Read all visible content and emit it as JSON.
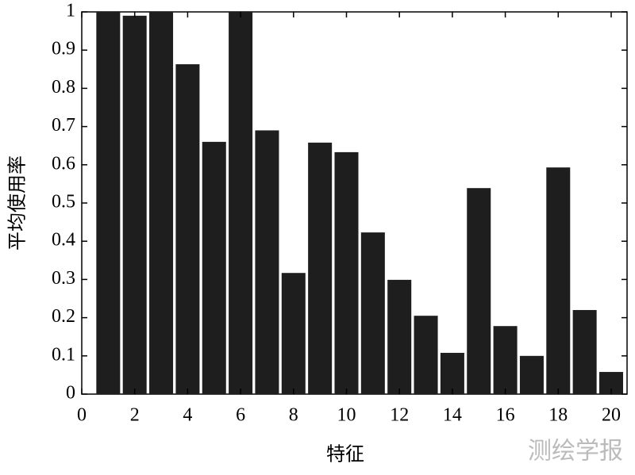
{
  "chart_data": {
    "type": "bar",
    "x": [
      1,
      2,
      3,
      4,
      5,
      6,
      7,
      8,
      9,
      10,
      11,
      12,
      13,
      14,
      15,
      16,
      17,
      18,
      19,
      20
    ],
    "values": [
      1.0,
      0.99,
      1.0,
      0.863,
      0.66,
      1.0,
      0.69,
      0.317,
      0.658,
      0.633,
      0.423,
      0.299,
      0.205,
      0.108,
      0.539,
      0.178,
      0.1,
      0.593,
      0.22,
      0.058
    ],
    "color": "#1e1e1e",
    "xlim": [
      0,
      20.6
    ],
    "xticks": [
      0,
      2,
      4,
      6,
      8,
      10,
      12,
      14,
      16,
      18,
      20
    ],
    "ylim": [
      0,
      1
    ],
    "yticks": [
      0,
      0.1,
      0.2,
      0.3,
      0.4,
      0.5,
      0.6,
      0.7,
      0.8,
      0.9,
      1
    ],
    "xlabel": "特征",
    "ylabel": "平均使用率",
    "watermark": "测绘学报"
  }
}
